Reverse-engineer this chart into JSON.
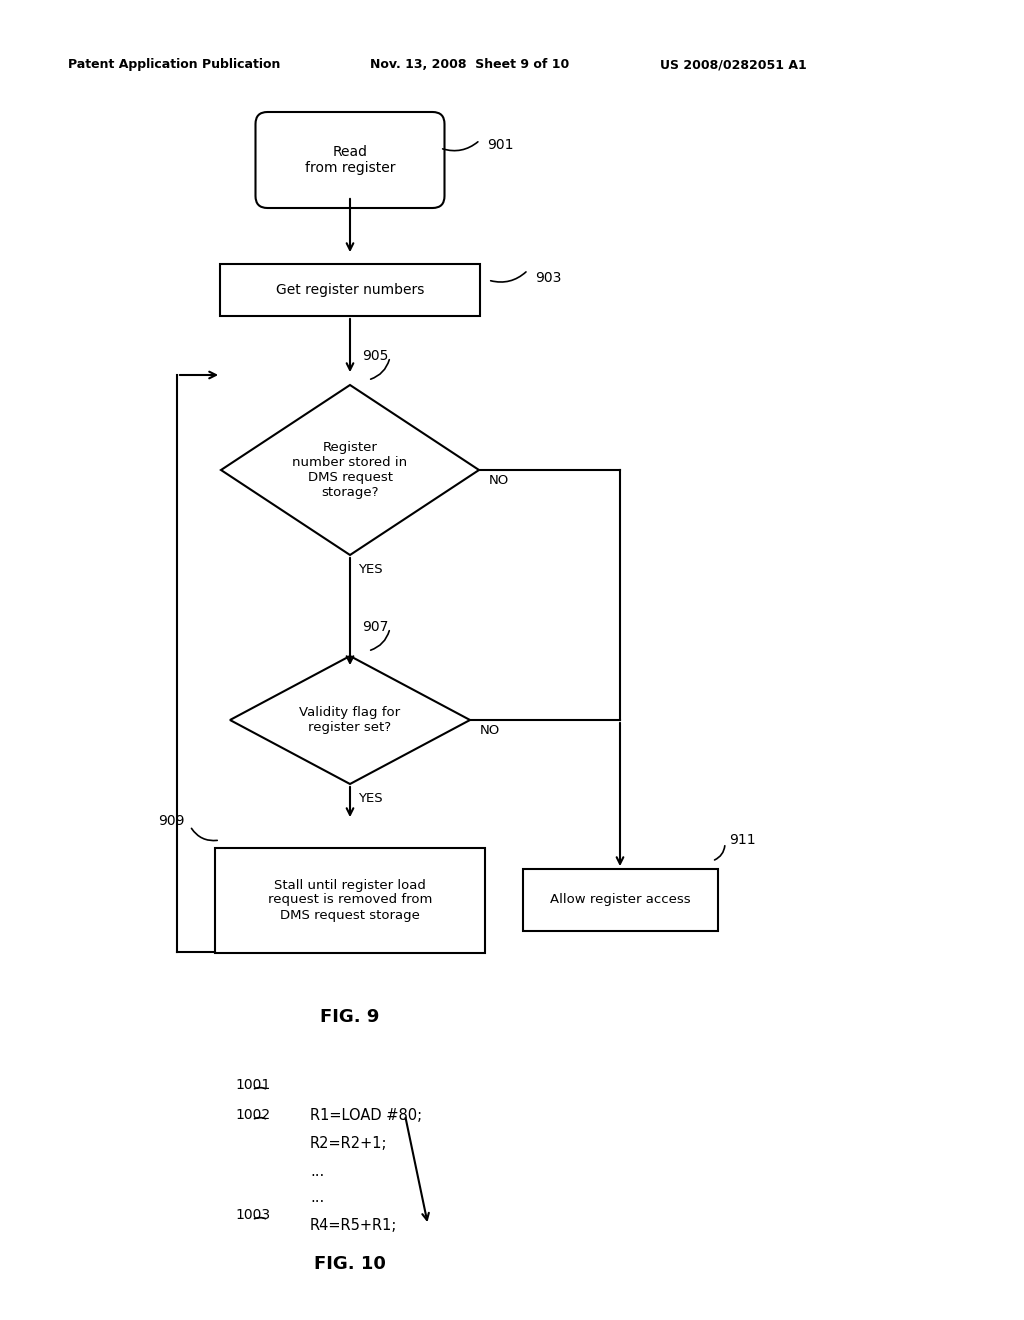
{
  "bg_color": "#ffffff",
  "header_left": "Patent Application Publication",
  "header_mid": "Nov. 13, 2008  Sheet 9 of 10",
  "header_right": "US 2008/0282051 A1",
  "fig9_label": "FIG. 9",
  "fig10_label": "FIG. 10",
  "node901_text": "Read\nfrom register",
  "node903_text": "Get register numbers",
  "node905_text": "Register\nnumber stored in\nDMS request\nstorage?",
  "node907_text": "Validity flag for\nregister set?",
  "node909_text": "Stall until register load\nrequest is removed from\nDMS request storage",
  "node911_text": "Allow register access",
  "label901": "901",
  "label903": "903",
  "label905": "905",
  "label907": "907",
  "label909": "909",
  "label911": "911",
  "yes_label": "YES",
  "no_label": "NO",
  "code_label1001": "1001",
  "code_label1002": "1002",
  "code_label1003": "1003",
  "code_line1": "R1=LOAD #80;",
  "code_line2": "R2=R2+1;",
  "code_dots1": "...",
  "code_dots2": "...",
  "code_line3": "R4=R5+R1;"
}
